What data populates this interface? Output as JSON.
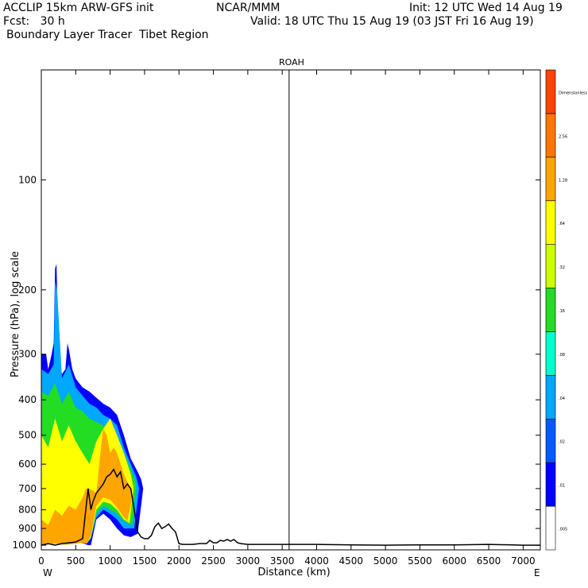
{
  "header": {
    "line1_left": "ACCLIP 15km ARW-GFS init",
    "line1_center": "NCAR/MMM",
    "line1_right": "Init: 12 UTC Wed 14 Aug 19",
    "line2_left": "Fcst:   30 h",
    "line2_right": "Valid: 18 UTC Thu 15 Aug 19 (03 JST Fri 16 Aug 19)",
    "line3_left": "Boundary Layer Tracer  Tibet Region"
  },
  "chart_data": {
    "type": "area",
    "title": "ROAH",
    "xlabel": "Distance (km)",
    "ylabel": "Pressure (hPa), log scale",
    "x_range": [
      0,
      7250
    ],
    "y_range_hpa": [
      1030,
      50
    ],
    "y_scale": "log",
    "x_ticks": [
      0,
      500,
      1000,
      1500,
      2000,
      2500,
      3000,
      3500,
      4000,
      4500,
      5000,
      5500,
      6000,
      6500,
      7000
    ],
    "y_ticks": [
      100,
      200,
      300,
      400,
      500,
      600,
      700,
      800,
      900,
      1000
    ],
    "x_end_labels": {
      "left": "W",
      "right": "E"
    },
    "marker_line_x": 3600,
    "colorbar": {
      "labels": [
        ".005",
        ".01",
        ".02",
        ".04",
        ".08",
        ".16",
        ".32",
        ".64",
        "1.28",
        "2.56",
        "Dimensionless"
      ],
      "colors": [
        "#ffffff",
        "#0000ff",
        "#005cff",
        "#00a8ff",
        "#00ffcc",
        "#22dd22",
        "#ccff00",
        "#ffff00",
        "#ffa500",
        "#ff7700",
        "#ff4400"
      ]
    },
    "terrain_surface": {
      "x": [
        0,
        100,
        200,
        300,
        400,
        500,
        600,
        680,
        720,
        750,
        800,
        850,
        900,
        950,
        1000,
        1050,
        1100,
        1150,
        1200,
        1250,
        1300,
        1350,
        1400,
        1450,
        1500,
        1550,
        1600,
        1650,
        1700,
        1750,
        1800,
        1850,
        1900,
        1950,
        2000,
        2050,
        2100,
        2200,
        2300,
        2400,
        2450,
        2500,
        2550,
        2600,
        2650,
        2700,
        2750,
        2800,
        2850,
        2900,
        3000,
        3500,
        4000,
        4500,
        5000,
        5500,
        6000,
        6500,
        7000,
        7250
      ],
      "p": [
        1000,
        990,
        1000,
        990,
        985,
        980,
        960,
        700,
        800,
        760,
        720,
        700,
        680,
        650,
        640,
        620,
        650,
        630,
        700,
        680,
        700,
        800,
        920,
        950,
        960,
        960,
        940,
        890,
        870,
        900,
        890,
        875,
        900,
        920,
        990,
        995,
        995,
        995,
        990,
        990,
        970,
        985,
        985,
        970,
        975,
        965,
        975,
        965,
        985,
        990,
        995,
        995,
        995,
        998,
        1000,
        998,
        998,
        995,
        1000,
        1000
      ]
    },
    "tracer_layers": [
      {
        "level": ".01",
        "x": [
          0,
          70,
          80,
          100,
          150,
          180,
          200,
          220,
          250,
          300,
          350,
          380,
          400,
          450,
          500,
          550,
          600,
          700,
          800,
          900,
          1000,
          1100,
          1200,
          1300,
          1400,
          1450,
          1480,
          1400,
          1300,
          1200,
          1100,
          1000,
          900,
          800,
          720,
          680,
          620,
          560,
          500,
          400,
          300,
          200,
          100,
          0
        ],
        "p": [
          300,
          300,
          310,
          330,
          300,
          280,
          175,
          170,
          300,
          340,
          330,
          280,
          290,
          330,
          350,
          360,
          370,
          380,
          395,
          410,
          420,
          440,
          500,
          580,
          630,
          660,
          700,
          930,
          950,
          940,
          900,
          850,
          820,
          850,
          1000,
          1000,
          990,
          985,
          990,
          995,
          995,
          990,
          995,
          1000
        ]
      },
      {
        "level": ".04",
        "x": [
          0,
          100,
          180,
          200,
          230,
          300,
          400,
          500,
          600,
          700,
          800,
          900,
          1000,
          1100,
          1200,
          1300,
          1380,
          1420,
          1350,
          1200,
          1100,
          1000,
          900,
          800,
          720,
          660,
          600,
          500,
          400,
          300,
          200,
          100,
          0
        ],
        "p": [
          330,
          340,
          320,
          190,
          200,
          350,
          320,
          370,
          390,
          410,
          420,
          440,
          450,
          470,
          540,
          600,
          650,
          700,
          900,
          900,
          850,
          820,
          800,
          840,
          960,
          990,
          985,
          990,
          995,
          995,
          990,
          995,
          1000
        ]
      },
      {
        "level": ".16",
        "x": [
          0,
          100,
          200,
          300,
          400,
          500,
          600,
          700,
          800,
          900,
          1000,
          1100,
          1200,
          1300,
          1380,
          1320,
          1200,
          1100,
          1000,
          900,
          800,
          720,
          660,
          600,
          500,
          400,
          300,
          200,
          100,
          0
        ],
        "p": [
          380,
          390,
          360,
          410,
          380,
          420,
          430,
          450,
          460,
          470,
          480,
          500,
          560,
          620,
          680,
          880,
          860,
          820,
          800,
          780,
          820,
          950,
          990,
          985,
          990,
          995,
          995,
          990,
          995,
          1000
        ]
      },
      {
        "level": ".64",
        "x": [
          0,
          100,
          200,
          300,
          400,
          500,
          600,
          700,
          800,
          900,
          1000,
          1100,
          1200,
          1300,
          1340,
          1280,
          1200,
          1100,
          1000,
          900,
          800,
          720,
          660,
          600,
          500,
          400,
          300,
          200,
          100,
          0
        ],
        "p": [
          500,
          540,
          450,
          520,
          470,
          520,
          560,
          600,
          520,
          480,
          450,
          500,
          560,
          640,
          700,
          870,
          850,
          800,
          770,
          760,
          800,
          950,
          990,
          985,
          990,
          995,
          995,
          990,
          995,
          1000
        ]
      },
      {
        "level": "1.28",
        "x": [
          0,
          100,
          200,
          300,
          400,
          500,
          600,
          650,
          700,
          800,
          850,
          900,
          950,
          1000,
          1050,
          1100,
          1200,
          1300,
          1310,
          1250,
          1200,
          1100,
          1000,
          900,
          800,
          720,
          660,
          600,
          500,
          400,
          300,
          200,
          100,
          0
        ],
        "p": [
          850,
          880,
          800,
          830,
          780,
          800,
          740,
          700,
          700,
          720,
          580,
          480,
          500,
          560,
          540,
          560,
          640,
          700,
          760,
          860,
          840,
          790,
          750,
          740,
          780,
          940,
          990,
          985,
          990,
          995,
          995,
          990,
          995,
          1000
        ]
      }
    ]
  }
}
